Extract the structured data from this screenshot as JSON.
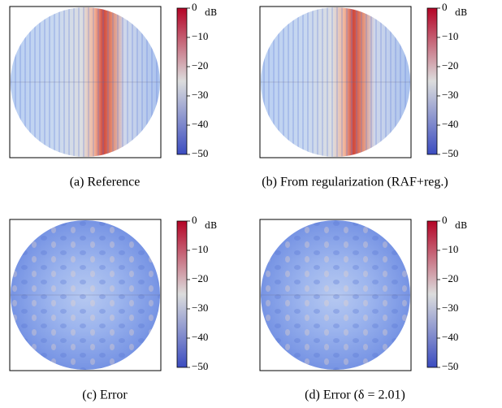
{
  "chart_data": [
    {
      "type": "heatmap",
      "caption": "(a) Reference",
      "pattern": "beam",
      "colorbar": {
        "label": "dB",
        "lim": [
          -50,
          0
        ],
        "ticks": [
          0,
          {
            "value": -10,
            "label": "−10"
          },
          {
            "value": -20,
            "label": "−20"
          },
          {
            "value": -30,
            "label": "−30"
          },
          {
            "value": -40,
            "label": "−40"
          },
          {
            "value": -50,
            "label": "−50"
          }
        ]
      },
      "colormap": [
        "#3b4cc0",
        "#dcdddd",
        "#b40426"
      ]
    },
    {
      "type": "heatmap",
      "caption": "(b) From regularization (RAF+reg.)",
      "pattern": "beam",
      "colorbar": {
        "label": "dB",
        "lim": [
          -50,
          0
        ],
        "ticks": [
          0,
          {
            "value": -10,
            "label": "−10"
          },
          {
            "value": -20,
            "label": "−20"
          },
          {
            "value": -30,
            "label": "−30"
          },
          {
            "value": -40,
            "label": "−40"
          },
          {
            "value": -50,
            "label": "−50"
          }
        ]
      },
      "colormap": [
        "#3b4cc0",
        "#dcdddd",
        "#b40426"
      ]
    },
    {
      "type": "heatmap",
      "caption": "(c) Error",
      "pattern": "error",
      "colorbar": {
        "label": "dB",
        "lim": [
          -50,
          0
        ],
        "ticks": [
          0,
          {
            "value": -10,
            "label": "−10"
          },
          {
            "value": -20,
            "label": "−20"
          },
          {
            "value": -30,
            "label": "−30"
          },
          {
            "value": -40,
            "label": "−40"
          },
          {
            "value": -50,
            "label": "−50"
          }
        ]
      },
      "colormap": [
        "#3b4cc0",
        "#dcdddd",
        "#b40426"
      ]
    },
    {
      "type": "heatmap",
      "caption": "(d) Error (δ = 2.01)",
      "pattern": "error",
      "colorbar": {
        "label": "dB",
        "lim": [
          -50,
          0
        ],
        "ticks": [
          0,
          {
            "value": -10,
            "label": "−10"
          },
          {
            "value": -20,
            "label": "−20"
          },
          {
            "value": -30,
            "label": "−30"
          },
          {
            "value": -40,
            "label": "−40"
          },
          {
            "value": -50,
            "label": "−50"
          }
        ]
      },
      "colormap": [
        "#3b4cc0",
        "#dcdddd",
        "#b40426"
      ]
    }
  ]
}
